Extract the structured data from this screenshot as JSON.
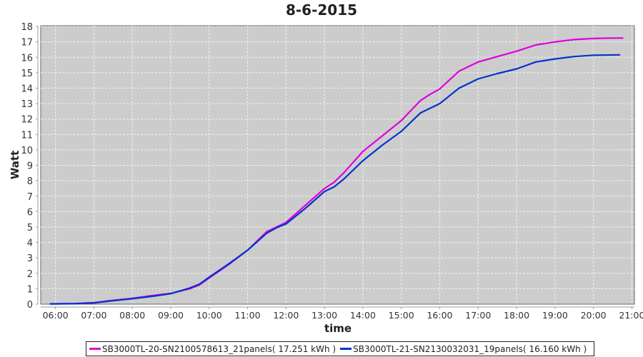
{
  "chart_data": {
    "type": "line",
    "title": "8-6-2015",
    "xlabel": "time",
    "ylabel": "Watt",
    "xlim": [
      "05:37",
      "21:04"
    ],
    "ylim": [
      0,
      18.05
    ],
    "x_ticks": [
      "06:00",
      "07:00",
      "08:00",
      "09:00",
      "10:00",
      "11:00",
      "12:00",
      "13:00",
      "14:00",
      "15:00",
      "16:00",
      "17:00",
      "18:00",
      "19:00",
      "20:00",
      "21:00"
    ],
    "y_ticks": [
      0,
      1,
      2,
      3,
      4,
      5,
      6,
      7,
      8,
      9,
      10,
      11,
      12,
      13,
      14,
      15,
      16,
      17,
      18
    ],
    "grid": true,
    "legend_position": "bottom",
    "plot_background": "#cccccc",
    "series": [
      {
        "name": "SB3000TL-20-SN2100578613_21panels( 17.251 kWh )",
        "color": "#dd00dd",
        "points": [
          [
            "05:52",
            0.02
          ],
          [
            "06:30",
            0.04
          ],
          [
            "07:00",
            0.1
          ],
          [
            "07:30",
            0.25
          ],
          [
            "08:00",
            0.38
          ],
          [
            "08:30",
            0.55
          ],
          [
            "09:00",
            0.7
          ],
          [
            "09:30",
            1.0
          ],
          [
            "09:45",
            1.25
          ],
          [
            "10:00",
            1.7
          ],
          [
            "10:30",
            2.55
          ],
          [
            "11:00",
            3.5
          ],
          [
            "11:30",
            4.7
          ],
          [
            "11:45",
            5.0
          ],
          [
            "12:00",
            5.3
          ],
          [
            "12:30",
            6.4
          ],
          [
            "13:00",
            7.5
          ],
          [
            "13:15",
            7.9
          ],
          [
            "13:30",
            8.5
          ],
          [
            "14:00",
            9.9
          ],
          [
            "14:30",
            10.9
          ],
          [
            "15:00",
            11.9
          ],
          [
            "15:30",
            13.2
          ],
          [
            "15:45",
            13.6
          ],
          [
            "16:00",
            13.95
          ],
          [
            "16:30",
            15.1
          ],
          [
            "17:00",
            15.7
          ],
          [
            "17:30",
            16.05
          ],
          [
            "18:00",
            16.4
          ],
          [
            "18:30",
            16.8
          ],
          [
            "19:00",
            17.0
          ],
          [
            "19:30",
            17.15
          ],
          [
            "20:00",
            17.22
          ],
          [
            "20:30",
            17.25
          ],
          [
            "20:46",
            17.251
          ]
        ]
      },
      {
        "name": "SB3000TL-21-SN2130032031_19panels( 16.160 kWh )",
        "color": "#0033cc",
        "points": [
          [
            "05:52",
            0.02
          ],
          [
            "06:30",
            0.03
          ],
          [
            "07:00",
            0.08
          ],
          [
            "07:30",
            0.22
          ],
          [
            "08:00",
            0.35
          ],
          [
            "08:30",
            0.5
          ],
          [
            "09:00",
            0.68
          ],
          [
            "09:30",
            1.05
          ],
          [
            "09:45",
            1.3
          ],
          [
            "10:00",
            1.75
          ],
          [
            "10:30",
            2.6
          ],
          [
            "11:00",
            3.5
          ],
          [
            "11:30",
            4.6
          ],
          [
            "11:45",
            4.95
          ],
          [
            "12:00",
            5.2
          ],
          [
            "12:30",
            6.2
          ],
          [
            "13:00",
            7.3
          ],
          [
            "13:15",
            7.6
          ],
          [
            "13:30",
            8.1
          ],
          [
            "14:00",
            9.3
          ],
          [
            "14:30",
            10.3
          ],
          [
            "15:00",
            11.2
          ],
          [
            "15:30",
            12.4
          ],
          [
            "15:45",
            12.7
          ],
          [
            "16:00",
            13.0
          ],
          [
            "16:30",
            14.0
          ],
          [
            "17:00",
            14.6
          ],
          [
            "17:30",
            14.95
          ],
          [
            "18:00",
            15.25
          ],
          [
            "18:30",
            15.7
          ],
          [
            "19:00",
            15.9
          ],
          [
            "19:30",
            16.05
          ],
          [
            "20:00",
            16.14
          ],
          [
            "20:41",
            16.16
          ]
        ]
      }
    ]
  }
}
